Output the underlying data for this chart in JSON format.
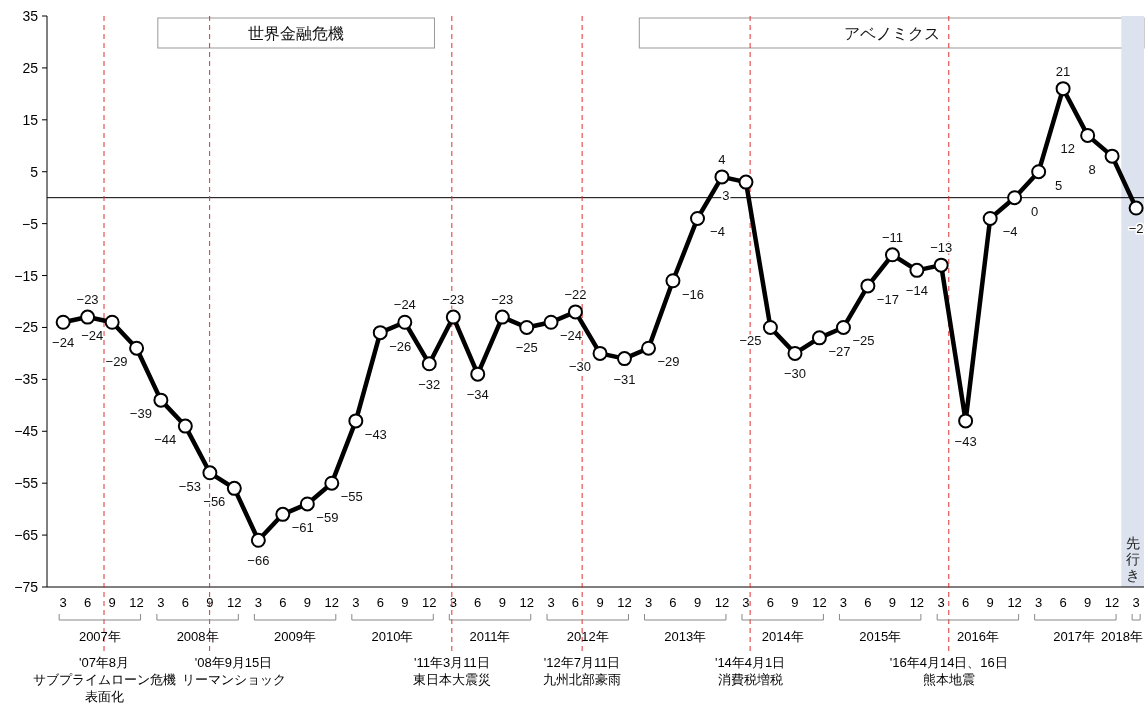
{
  "chart_data": {
    "type": "line",
    "x": [
      "2007-03",
      "2007-06",
      "2007-09",
      "2007-12",
      "2008-03",
      "2008-06",
      "2008-09",
      "2008-12",
      "2009-03",
      "2009-06",
      "2009-09",
      "2009-12",
      "2010-03",
      "2010-06",
      "2010-09",
      "2010-12",
      "2011-03",
      "2011-06",
      "2011-09",
      "2011-12",
      "2012-03",
      "2012-06",
      "2012-09",
      "2012-12",
      "2013-03",
      "2013-06",
      "2013-09",
      "2013-12",
      "2014-03",
      "2014-06",
      "2014-09",
      "2014-12",
      "2015-03",
      "2015-06",
      "2015-09",
      "2015-12",
      "2016-03",
      "2016-06",
      "2016-09",
      "2016-12",
      "2017-03",
      "2017-06",
      "2017-09",
      "2017-12",
      "2018-03"
    ],
    "series": [
      {
        "color": "#000000",
        "values": [
          -24,
          -23,
          -24,
          -29,
          -39,
          -44,
          -53,
          -56,
          -66,
          -61,
          -59,
          -55,
          -43,
          -26,
          -24,
          -32,
          -23,
          -34,
          -23,
          -25,
          -24,
          -22,
          -30,
          -31,
          -29,
          -16,
          -4,
          4,
          3,
          -25,
          -30,
          -27,
          -25,
          -17,
          -11,
          -14,
          -13,
          -43,
          -4,
          0,
          5,
          21,
          12,
          8,
          -2
        ]
      }
    ],
    "data_labels": true,
    "marker": "circle",
    "line_style": "solid",
    "grid": false,
    "xlim": [
      "2007-01-15",
      "2018-04-15"
    ],
    "xticks": [
      {
        "value": "2007-03",
        "label": "3"
      },
      {
        "value": "2007-06",
        "label": "6"
      },
      {
        "value": "2007-09",
        "label": "9"
      },
      {
        "value": "2007-12",
        "label": "12"
      },
      {
        "value": "2008-03",
        "label": "3"
      },
      {
        "value": "2008-06",
        "label": "6"
      },
      {
        "value": "2008-09",
        "label": "9"
      },
      {
        "value": "2008-12",
        "label": "12"
      },
      {
        "value": "2009-03",
        "label": "3"
      },
      {
        "value": "2009-06",
        "label": "6"
      },
      {
        "value": "2009-09",
        "label": "9"
      },
      {
        "value": "2009-12",
        "label": "12"
      },
      {
        "value": "2010-03",
        "label": "3"
      },
      {
        "value": "2010-06",
        "label": "6"
      },
      {
        "value": "2010-09",
        "label": "9"
      },
      {
        "value": "2010-12",
        "label": "12"
      },
      {
        "value": "2011-03",
        "label": "3"
      },
      {
        "value": "2011-06",
        "label": "6"
      },
      {
        "value": "2011-09",
        "label": "9"
      },
      {
        "value": "2011-12",
        "label": "12"
      },
      {
        "value": "2012-03",
        "label": "3"
      },
      {
        "value": "2012-06",
        "label": "6"
      },
      {
        "value": "2012-09",
        "label": "9"
      },
      {
        "value": "2012-12",
        "label": "12"
      },
      {
        "value": "2013-03",
        "label": "3"
      },
      {
        "value": "2013-06",
        "label": "6"
      },
      {
        "value": "2013-09",
        "label": "9"
      },
      {
        "value": "2013-12",
        "label": "12"
      },
      {
        "value": "2014-03",
        "label": "3"
      },
      {
        "value": "2014-06",
        "label": "6"
      },
      {
        "value": "2014-09",
        "label": "9"
      },
      {
        "value": "2014-12",
        "label": "12"
      },
      {
        "value": "2015-03",
        "label": "3"
      },
      {
        "value": "2015-06",
        "label": "6"
      },
      {
        "value": "2015-09",
        "label": "9"
      },
      {
        "value": "2015-12",
        "label": "12"
      },
      {
        "value": "2016-03",
        "label": "3"
      },
      {
        "value": "2016-06",
        "label": "6"
      },
      {
        "value": "2016-09",
        "label": "9"
      },
      {
        "value": "2016-12",
        "label": "12"
      },
      {
        "value": "2017-03",
        "label": "3"
      },
      {
        "value": "2017-06",
        "label": "6"
      },
      {
        "value": "2017-09",
        "label": "9"
      },
      {
        "value": "2017-12",
        "label": "12"
      },
      {
        "value": "2018-03",
        "label": "3"
      }
    ],
    "ylim": [
      -75,
      35
    ],
    "yticks": [
      -75,
      -65,
      -55,
      -45,
      -35,
      -25,
      -15,
      -5,
      5,
      15,
      25,
      35
    ],
    "ref_lines": [
      {
        "axis": "y",
        "value": 0,
        "color": "#000000",
        "line_style": "solid"
      },
      {
        "axis": "x",
        "value": "2007-08",
        "label": "'07年8月サブプライムローン危機表面化",
        "color": "#e03030",
        "line_style": "dashed"
      },
      {
        "axis": "x",
        "value": "2008-09-15",
        "label": "'08年9月15日リーマンショック",
        "color": "#e03030",
        "line_style": "dashed"
      },
      {
        "axis": "x",
        "value": "2011-03-11",
        "label": "'11年3月11日東日本大震災",
        "color": "#e03030",
        "line_style": "dashed"
      },
      {
        "axis": "x",
        "value": "2012-07-11",
        "label": "'12年7月11日九州北部豪雨",
        "color": "#e03030",
        "line_style": "dashed"
      },
      {
        "axis": "x",
        "value": "2014-04-01",
        "label": "'14年4月1日消費税増税",
        "color": "#e03030",
        "line_style": "dashed"
      },
      {
        "axis": "x",
        "value": "2016-04-14",
        "label": "'16年4月14日、16日熊本地震",
        "color": "#e03030",
        "line_style": "dashed"
      }
    ],
    "bands": [
      {
        "axis": "x",
        "from": "2008-03-05",
        "to": "2011-01-05",
        "label": "世界金融危機"
      },
      {
        "axis": "x",
        "from": "2013-02-10",
        "to": "2018-04-15",
        "label": "アベノミクス"
      },
      {
        "axis": "x",
        "from": "2018-01-20",
        "to": "2018-04-15",
        "label": "先行き",
        "color": "#dce3ef"
      }
    ],
    "annotations": [
      "2007年",
      "2008年",
      "2009年",
      "2010年",
      "2011年",
      "2012年",
      "2013年",
      "2014年",
      "2015年",
      "2016年",
      "2017年",
      "2018年"
    ]
  }
}
